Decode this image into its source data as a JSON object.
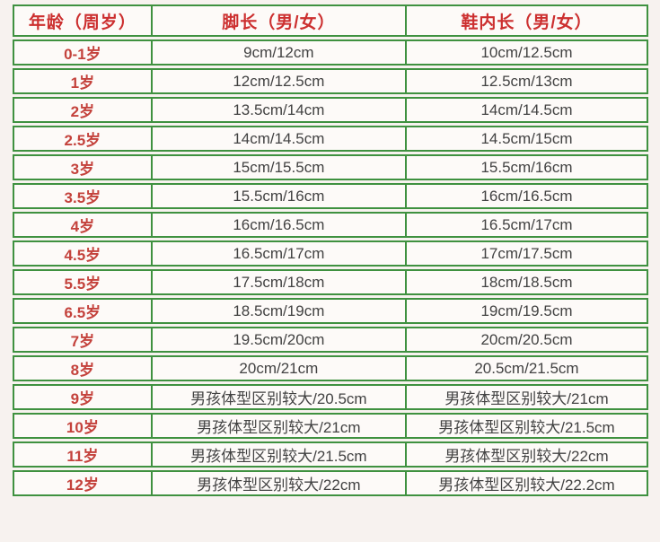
{
  "page": {
    "background_color": "#f7f2ef",
    "table_border_color": "#3f9140",
    "header_text_color": "#cc2f2f",
    "age_text_color": "#c4423c",
    "value_text_color": "#424242"
  },
  "table": {
    "headers": [
      "年龄（周岁）",
      "脚长（男/女）",
      "鞋内长（男/女）"
    ],
    "rows": [
      {
        "age": "0-1岁",
        "foot": "9cm/12cm",
        "shoe": "10cm/12.5cm"
      },
      {
        "age": "1岁",
        "foot": "12cm/12.5cm",
        "shoe": "12.5cm/13cm"
      },
      {
        "age": "2岁",
        "foot": "13.5cm/14cm",
        "shoe": "14cm/14.5cm"
      },
      {
        "age": "2.5岁",
        "foot": "14cm/14.5cm",
        "shoe": "14.5cm/15cm"
      },
      {
        "age": "3岁",
        "foot": "15cm/15.5cm",
        "shoe": "15.5cm/16cm"
      },
      {
        "age": "3.5岁",
        "foot": "15.5cm/16cm",
        "shoe": "16cm/16.5cm"
      },
      {
        "age": "4岁",
        "foot": "16cm/16.5cm",
        "shoe": "16.5cm/17cm"
      },
      {
        "age": "4.5岁",
        "foot": "16.5cm/17cm",
        "shoe": "17cm/17.5cm"
      },
      {
        "age": "5.5岁",
        "foot": "17.5cm/18cm",
        "shoe": "18cm/18.5cm"
      },
      {
        "age": "6.5岁",
        "foot": "18.5cm/19cm",
        "shoe": "19cm/19.5cm"
      },
      {
        "age": "7岁",
        "foot": "19.5cm/20cm",
        "shoe": "20cm/20.5cm"
      },
      {
        "age": "8岁",
        "foot": "20cm/21cm",
        "shoe": "20.5cm/21.5cm"
      },
      {
        "age": "9岁",
        "foot": "男孩体型区别较大/20.5cm",
        "shoe": "男孩体型区别较大/21cm"
      },
      {
        "age": "10岁",
        "foot": "男孩体型区别较大/21cm",
        "shoe": "男孩体型区别较大/21.5cm"
      },
      {
        "age": "11岁",
        "foot": "男孩体型区别较大/21.5cm",
        "shoe": "男孩体型区别较大/22cm"
      },
      {
        "age": "12岁",
        "foot": "男孩体型区别较大/22cm",
        "shoe": "男孩体型区别较大/22.2cm"
      }
    ]
  }
}
